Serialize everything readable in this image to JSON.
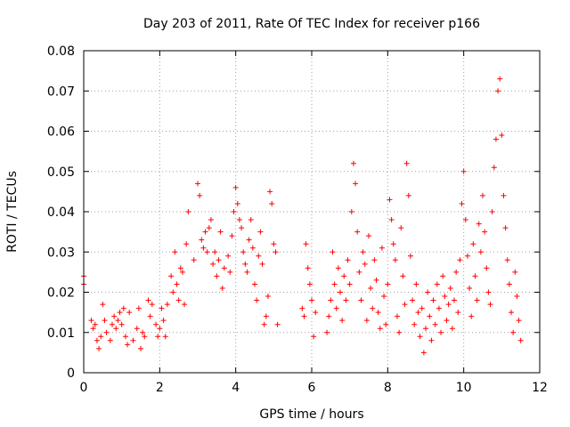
{
  "chart_data": {
    "type": "scatter",
    "title": "Day 203 of 2011, Rate Of TEC Index for receiver p166",
    "xlabel": "GPS time / hours",
    "ylabel": "ROTI / TECUs",
    "xlim": [
      0,
      12
    ],
    "ylim": [
      0,
      0.08
    ],
    "xticks": [
      0,
      2,
      4,
      6,
      8,
      10,
      12
    ],
    "xtick_labels": [
      "0",
      "2",
      "4",
      "6",
      "8",
      "10",
      "12"
    ],
    "yticks": [
      0,
      0.01,
      0.02,
      0.03,
      0.04,
      0.05,
      0.06,
      0.07,
      0.08
    ],
    "ytick_labels": [
      "0",
      "0.01",
      "0.02",
      "0.03",
      "0.04",
      "0.05",
      "0.06",
      "0.07",
      "0.08"
    ],
    "grid": true,
    "marker": "+",
    "color": "#ff0000",
    "series": [
      {
        "name": "ROTI",
        "points": [
          [
            0.0,
            0.024
          ],
          [
            0.0,
            0.022
          ],
          [
            0.2,
            0.013
          ],
          [
            0.25,
            0.011
          ],
          [
            0.3,
            0.012
          ],
          [
            0.35,
            0.008
          ],
          [
            0.4,
            0.006
          ],
          [
            0.45,
            0.009
          ],
          [
            0.5,
            0.017
          ],
          [
            0.55,
            0.013
          ],
          [
            0.6,
            0.01
          ],
          [
            0.7,
            0.008
          ],
          [
            0.75,
            0.012
          ],
          [
            0.8,
            0.014
          ],
          [
            0.85,
            0.011
          ],
          [
            0.9,
            0.013
          ],
          [
            0.95,
            0.015
          ],
          [
            1.0,
            0.012
          ],
          [
            1.05,
            0.016
          ],
          [
            1.1,
            0.009
          ],
          [
            1.15,
            0.007
          ],
          [
            1.2,
            0.015
          ],
          [
            1.3,
            0.008
          ],
          [
            1.4,
            0.011
          ],
          [
            1.45,
            0.016
          ],
          [
            1.5,
            0.006
          ],
          [
            1.55,
            0.01
          ],
          [
            1.6,
            0.009
          ],
          [
            1.7,
            0.018
          ],
          [
            1.75,
            0.014
          ],
          [
            1.8,
            0.017
          ],
          [
            1.9,
            0.012
          ],
          [
            1.95,
            0.009
          ],
          [
            2.0,
            0.011
          ],
          [
            2.05,
            0.016
          ],
          [
            2.1,
            0.013
          ],
          [
            2.15,
            0.009
          ],
          [
            2.2,
            0.017
          ],
          [
            2.3,
            0.024
          ],
          [
            2.35,
            0.02
          ],
          [
            2.4,
            0.03
          ],
          [
            2.45,
            0.022
          ],
          [
            2.5,
            0.018
          ],
          [
            2.55,
            0.026
          ],
          [
            2.6,
            0.025
          ],
          [
            2.65,
            0.017
          ],
          [
            2.7,
            0.032
          ],
          [
            2.75,
            0.04
          ],
          [
            2.9,
            0.028
          ],
          [
            3.0,
            0.047
          ],
          [
            3.05,
            0.044
          ],
          [
            3.1,
            0.033
          ],
          [
            3.15,
            0.031
          ],
          [
            3.2,
            0.035
          ],
          [
            3.25,
            0.03
          ],
          [
            3.3,
            0.036
          ],
          [
            3.35,
            0.038
          ],
          [
            3.4,
            0.027
          ],
          [
            3.45,
            0.03
          ],
          [
            3.5,
            0.024
          ],
          [
            3.55,
            0.028
          ],
          [
            3.6,
            0.035
          ],
          [
            3.65,
            0.021
          ],
          [
            3.7,
            0.026
          ],
          [
            3.8,
            0.029
          ],
          [
            3.85,
            0.025
          ],
          [
            3.9,
            0.034
          ],
          [
            3.95,
            0.04
          ],
          [
            4.0,
            0.046
          ],
          [
            4.05,
            0.042
          ],
          [
            4.1,
            0.038
          ],
          [
            4.15,
            0.036
          ],
          [
            4.2,
            0.03
          ],
          [
            4.25,
            0.027
          ],
          [
            4.3,
            0.025
          ],
          [
            4.35,
            0.033
          ],
          [
            4.4,
            0.038
          ],
          [
            4.45,
            0.031
          ],
          [
            4.5,
            0.022
          ],
          [
            4.55,
            0.018
          ],
          [
            4.6,
            0.029
          ],
          [
            4.65,
            0.035
          ],
          [
            4.7,
            0.027
          ],
          [
            4.75,
            0.012
          ],
          [
            4.8,
            0.014
          ],
          [
            4.85,
            0.019
          ],
          [
            4.9,
            0.045
          ],
          [
            4.95,
            0.042
          ],
          [
            5.0,
            0.032
          ],
          [
            5.05,
            0.03
          ],
          [
            5.1,
            0.012
          ],
          [
            5.75,
            0.016
          ],
          [
            5.8,
            0.014
          ],
          [
            5.85,
            0.032
          ],
          [
            5.9,
            0.026
          ],
          [
            5.95,
            0.022
          ],
          [
            6.0,
            0.018
          ],
          [
            6.05,
            0.009
          ],
          [
            6.1,
            0.015
          ],
          [
            6.4,
            0.01
          ],
          [
            6.45,
            0.014
          ],
          [
            6.5,
            0.018
          ],
          [
            6.55,
            0.03
          ],
          [
            6.6,
            0.022
          ],
          [
            6.65,
            0.016
          ],
          [
            6.7,
            0.026
          ],
          [
            6.75,
            0.02
          ],
          [
            6.8,
            0.013
          ],
          [
            6.85,
            0.024
          ],
          [
            6.9,
            0.018
          ],
          [
            6.95,
            0.028
          ],
          [
            7.0,
            0.022
          ],
          [
            7.05,
            0.04
          ],
          [
            7.1,
            0.052
          ],
          [
            7.15,
            0.047
          ],
          [
            7.2,
            0.035
          ],
          [
            7.25,
            0.025
          ],
          [
            7.3,
            0.018
          ],
          [
            7.35,
            0.03
          ],
          [
            7.4,
            0.027
          ],
          [
            7.45,
            0.013
          ],
          [
            7.5,
            0.034
          ],
          [
            7.55,
            0.021
          ],
          [
            7.6,
            0.016
          ],
          [
            7.65,
            0.028
          ],
          [
            7.7,
            0.023
          ],
          [
            7.75,
            0.015
          ],
          [
            7.8,
            0.011
          ],
          [
            7.85,
            0.031
          ],
          [
            7.9,
            0.019
          ],
          [
            7.95,
            0.012
          ],
          [
            8.0,
            0.022
          ],
          [
            8.05,
            0.043
          ],
          [
            8.1,
            0.038
          ],
          [
            8.15,
            0.032
          ],
          [
            8.2,
            0.028
          ],
          [
            8.25,
            0.014
          ],
          [
            8.3,
            0.01
          ],
          [
            8.35,
            0.036
          ],
          [
            8.4,
            0.024
          ],
          [
            8.45,
            0.017
          ],
          [
            8.5,
            0.052
          ],
          [
            8.55,
            0.044
          ],
          [
            8.6,
            0.029
          ],
          [
            8.65,
            0.018
          ],
          [
            8.7,
            0.012
          ],
          [
            8.75,
            0.022
          ],
          [
            8.8,
            0.015
          ],
          [
            8.85,
            0.009
          ],
          [
            8.9,
            0.016
          ],
          [
            8.95,
            0.005
          ],
          [
            9.0,
            0.011
          ],
          [
            9.05,
            0.02
          ],
          [
            9.1,
            0.014
          ],
          [
            9.15,
            0.008
          ],
          [
            9.2,
            0.018
          ],
          [
            9.25,
            0.012
          ],
          [
            9.3,
            0.022
          ],
          [
            9.35,
            0.016
          ],
          [
            9.4,
            0.01
          ],
          [
            9.45,
            0.024
          ],
          [
            9.5,
            0.019
          ],
          [
            9.55,
            0.013
          ],
          [
            9.6,
            0.017
          ],
          [
            9.65,
            0.021
          ],
          [
            9.7,
            0.011
          ],
          [
            9.75,
            0.018
          ],
          [
            9.8,
            0.025
          ],
          [
            9.85,
            0.015
          ],
          [
            9.9,
            0.028
          ],
          [
            9.95,
            0.042
          ],
          [
            10.0,
            0.05
          ],
          [
            10.05,
            0.038
          ],
          [
            10.1,
            0.029
          ],
          [
            10.15,
            0.021
          ],
          [
            10.2,
            0.014
          ],
          [
            10.25,
            0.032
          ],
          [
            10.3,
            0.024
          ],
          [
            10.35,
            0.018
          ],
          [
            10.4,
            0.037
          ],
          [
            10.45,
            0.03
          ],
          [
            10.5,
            0.044
          ],
          [
            10.55,
            0.035
          ],
          [
            10.6,
            0.026
          ],
          [
            10.65,
            0.02
          ],
          [
            10.7,
            0.017
          ],
          [
            10.75,
            0.04
          ],
          [
            10.8,
            0.051
          ],
          [
            10.85,
            0.058
          ],
          [
            10.9,
            0.07
          ],
          [
            10.95,
            0.073
          ],
          [
            11.0,
            0.059
          ],
          [
            11.05,
            0.044
          ],
          [
            11.1,
            0.036
          ],
          [
            11.15,
            0.028
          ],
          [
            11.2,
            0.022
          ],
          [
            11.25,
            0.015
          ],
          [
            11.3,
            0.01
          ],
          [
            11.35,
            0.025
          ],
          [
            11.4,
            0.019
          ],
          [
            11.45,
            0.013
          ],
          [
            11.5,
            0.008
          ]
        ]
      }
    ]
  }
}
